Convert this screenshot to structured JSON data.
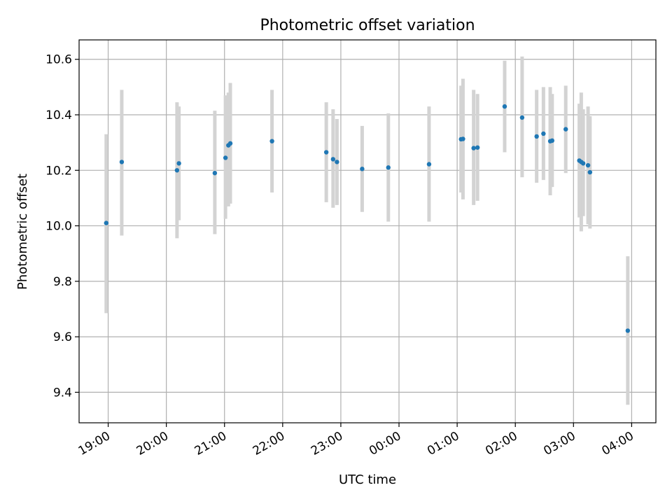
{
  "chart_data": {
    "type": "scatter",
    "title": "Photometric offset variation",
    "xlabel": "UTC time",
    "ylabel": "Photometric offset",
    "x_axis_kind": "time",
    "x_start": "18:30",
    "x_end": "04:25",
    "ylim": [
      9.29,
      10.67
    ],
    "x_ticks": [
      "19:00",
      "20:00",
      "21:00",
      "22:00",
      "23:00",
      "00:00",
      "01:00",
      "02:00",
      "03:00",
      "04:00"
    ],
    "y_ticks": [
      9.4,
      9.6,
      9.8,
      10.0,
      10.2,
      10.4,
      10.6
    ],
    "grid": true,
    "point_color": "#1f77b4",
    "errorbar_color": "#d3d3d3",
    "points": [
      {
        "x": "18:58",
        "y": 10.01,
        "err_low": 9.685,
        "err_high": 10.33
      },
      {
        "x": "19:14",
        "y": 10.23,
        "err_low": 9.965,
        "err_high": 10.49
      },
      {
        "x": "20:11",
        "y": 10.2,
        "err_low": 9.955,
        "err_high": 10.445
      },
      {
        "x": "20:13",
        "y": 10.225,
        "err_low": 10.02,
        "err_high": 10.43
      },
      {
        "x": "20:50",
        "y": 10.19,
        "err_low": 9.97,
        "err_high": 10.415
      },
      {
        "x": "21:01",
        "y": 10.245,
        "err_low": 10.025,
        "err_high": 10.47
      },
      {
        "x": "21:04",
        "y": 10.29,
        "err_low": 10.07,
        "err_high": 10.48
      },
      {
        "x": "21:06",
        "y": 10.297,
        "err_low": 10.08,
        "err_high": 10.515
      },
      {
        "x": "21:49",
        "y": 10.305,
        "err_low": 10.12,
        "err_high": 10.49
      },
      {
        "x": "22:45",
        "y": 10.265,
        "err_low": 10.085,
        "err_high": 10.445
      },
      {
        "x": "22:52",
        "y": 10.24,
        "err_low": 10.065,
        "err_high": 10.42
      },
      {
        "x": "22:56",
        "y": 10.23,
        "err_low": 10.075,
        "err_high": 10.385
      },
      {
        "x": "23:22",
        "y": 10.205,
        "err_low": 10.05,
        "err_high": 10.36
      },
      {
        "x": "23:49",
        "y": 10.21,
        "err_low": 10.015,
        "err_high": 10.405
      },
      {
        "x": "00:31",
        "y": 10.222,
        "err_low": 10.015,
        "err_high": 10.43
      },
      {
        "x": "01:04",
        "y": 10.312,
        "err_low": 10.12,
        "err_high": 10.505
      },
      {
        "x": "01:06",
        "y": 10.313,
        "err_low": 10.095,
        "err_high": 10.53
      },
      {
        "x": "01:17",
        "y": 10.28,
        "err_low": 10.075,
        "err_high": 10.49
      },
      {
        "x": "01:21",
        "y": 10.282,
        "err_low": 10.09,
        "err_high": 10.475
      },
      {
        "x": "01:49",
        "y": 10.43,
        "err_low": 10.265,
        "err_high": 10.595
      },
      {
        "x": "02:07",
        "y": 10.39,
        "err_low": 10.175,
        "err_high": 10.61
      },
      {
        "x": "02:22",
        "y": 10.322,
        "err_low": 10.155,
        "err_high": 10.49
      },
      {
        "x": "02:29",
        "y": 10.332,
        "err_low": 10.165,
        "err_high": 10.5
      },
      {
        "x": "02:36",
        "y": 10.305,
        "err_low": 10.11,
        "err_high": 10.5
      },
      {
        "x": "02:38",
        "y": 10.307,
        "err_low": 10.14,
        "err_high": 10.475
      },
      {
        "x": "02:52",
        "y": 10.348,
        "err_low": 10.19,
        "err_high": 10.505
      },
      {
        "x": "03:06",
        "y": 10.235,
        "err_low": 10.03,
        "err_high": 10.44
      },
      {
        "x": "03:08",
        "y": 10.23,
        "err_low": 9.98,
        "err_high": 10.48
      },
      {
        "x": "03:10",
        "y": 10.225,
        "err_low": 10.035,
        "err_high": 10.42
      },
      {
        "x": "03:15",
        "y": 10.218,
        "err_low": 10.005,
        "err_high": 10.43
      },
      {
        "x": "03:17",
        "y": 10.193,
        "err_low": 9.99,
        "err_high": 10.395
      },
      {
        "x": "03:56",
        "y": 9.622,
        "err_low": 9.355,
        "err_high": 9.89
      }
    ]
  }
}
